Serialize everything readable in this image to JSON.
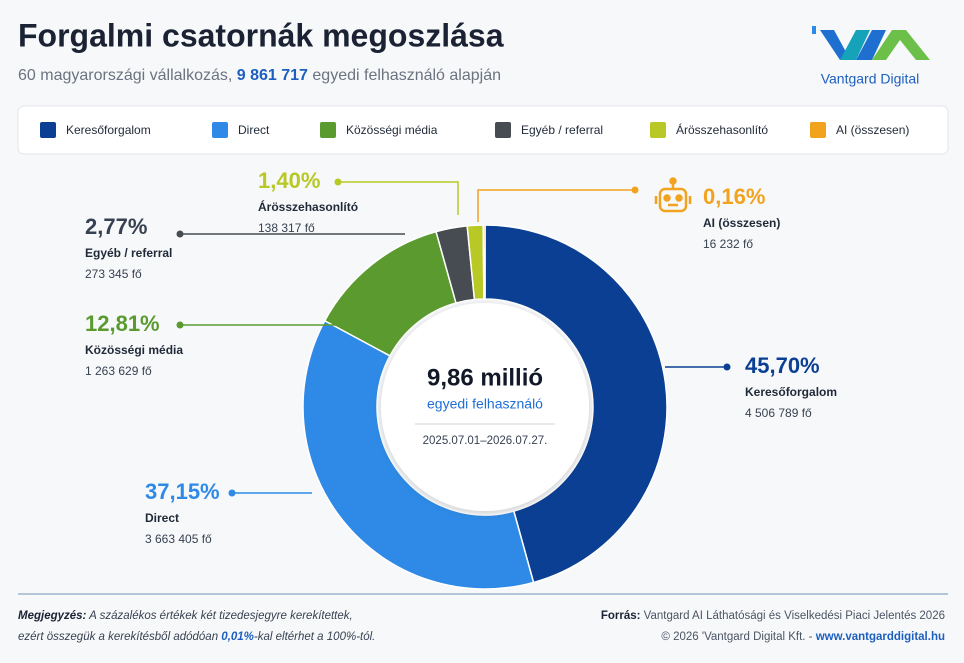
{
  "header": {
    "title": "Forgalmi csatornák megoszlása",
    "subtitle_parts": [
      "60 magyarországi vállalkozás, ",
      "9 861 717",
      " egyedi felhasználó alapján"
    ],
    "logo": "Vantgard Digital"
  },
  "chart_data": {
    "type": "donut",
    "categories": [
      "Keresőforgalom",
      "Direct",
      "Közösségi média",
      "Egyéb / referral",
      "Árösszehasonlító",
      "AI (összesen)"
    ],
    "values": [
      45.7,
      37.15,
      12.81,
      2.77,
      1.4,
      0.16
    ],
    "value_labels": [
      "45,70%",
      "37,15%",
      "12,81%",
      "2,77%",
      "1,40%",
      "0,16%"
    ],
    "counts": [
      "4 506 789 fő",
      "3 663 405 fő",
      "1 263 629 fő",
      "273 345 fő",
      "138 317 fő",
      "16 232 fő"
    ],
    "colors": [
      "#0b3f93",
      "#2e8ae6",
      "#5b9a2f",
      "#474c52",
      "#b8c824",
      "#f2a31e"
    ],
    "center": {
      "title": "9,86 millió",
      "subtitle": "egyedi felhasználó",
      "period": "2025.07.01–2026.07.27."
    }
  },
  "footer": {
    "note_label": "Megjegyzés:",
    "note_parts": [
      " A százalékos értékek két tizedesjegyre kerekítettek,",
      "ezért összegük a kerekítésből adódóan ",
      "0,01%",
      "-kal eltérhet a 100%-tól."
    ],
    "source_label": "Forrás:",
    "source": " Vantgard AI Láthatósági és Viselkedési Piaci Jelentés 2026",
    "copyright": "© 2026 'Vantgard Digital Kft. - ",
    "url": "www.vantgarddigital.hu"
  }
}
